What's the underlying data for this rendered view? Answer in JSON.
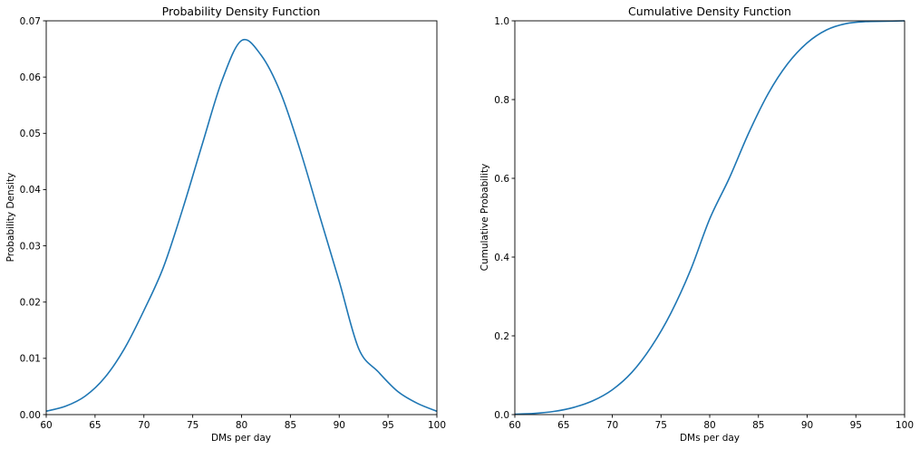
{
  "chart_data": [
    {
      "type": "line",
      "title": "Probability Density Function",
      "xlabel": "DMs per day",
      "ylabel": "Probability Density",
      "xlim": [
        60,
        100
      ],
      "ylim": [
        0,
        0.07
      ],
      "xticks": [
        "60",
        "65",
        "70",
        "75",
        "80",
        "85",
        "90",
        "95",
        "100"
      ],
      "yticks": [
        "0.00",
        "0.01",
        "0.02",
        "0.03",
        "0.04",
        "0.05",
        "0.06",
        "0.07"
      ],
      "grid": false,
      "series": [
        {
          "color": "#1f77b4",
          "x": [
            60,
            62,
            64,
            66,
            68,
            70,
            72,
            74,
            76,
            78,
            80,
            82,
            84,
            86,
            88,
            90,
            92,
            94,
            96,
            98,
            100
          ],
          "y": [
            0.0006,
            0.0015,
            0.0033,
            0.0066,
            0.0117,
            0.0185,
            0.0262,
            0.0367,
            0.0482,
            0.0594,
            0.0665,
            0.0639,
            0.0572,
            0.047,
            0.0353,
            0.0237,
            0.0117,
            0.0076,
            0.0041,
            0.002,
            0.0006
          ]
        }
      ]
    },
    {
      "type": "line",
      "title": "Cumulative Density Function",
      "xlabel": "DMs per day",
      "ylabel": "Cumulative Probability",
      "xlim": [
        60,
        100
      ],
      "ylim": [
        0,
        1.0
      ],
      "xticks": [
        "60",
        "65",
        "70",
        "75",
        "80",
        "85",
        "90",
        "95",
        "100"
      ],
      "yticks": [
        "0.0",
        "0.2",
        "0.4",
        "0.6",
        "0.8",
        "1.0"
      ],
      "grid": false,
      "series": [
        {
          "color": "#1f77b4",
          "x": [
            60,
            62,
            64,
            66,
            68,
            70,
            72,
            74,
            76,
            78,
            80,
            82,
            84,
            86,
            88,
            90,
            92,
            94,
            96,
            98,
            100
          ],
          "y": [
            0.001,
            0.003,
            0.008,
            0.018,
            0.035,
            0.063,
            0.107,
            0.172,
            0.257,
            0.365,
            0.497,
            0.6,
            0.715,
            0.815,
            0.891,
            0.944,
            0.977,
            0.993,
            0.998,
            0.999,
            1.0
          ]
        }
      ]
    }
  ]
}
